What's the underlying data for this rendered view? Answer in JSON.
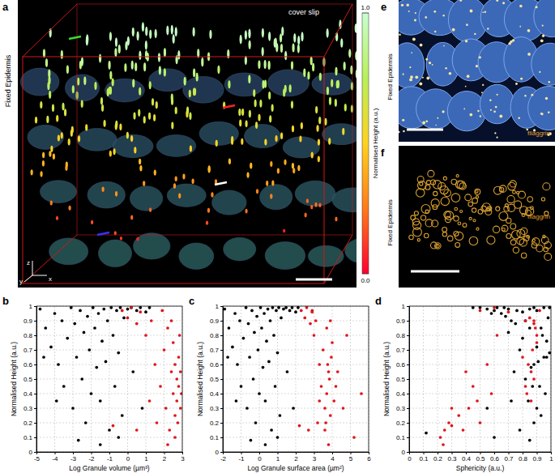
{
  "chart_data": [
    {
      "type": "scatter",
      "title": "b",
      "x_label": "Log Granule volume (µm³)",
      "y_label": "Normalised Height (a.u.)",
      "xlim": [
        -5,
        3
      ],
      "ylim": [
        0,
        1
      ],
      "xticks": [
        -5,
        -4,
        -3,
        -2,
        -1,
        0,
        1,
        2,
        3
      ],
      "yticks": [
        0,
        0.1,
        0.2,
        0.3,
        0.4,
        0.5,
        0.6,
        0.7,
        0.8,
        0.9,
        1
      ],
      "grid": true,
      "marker": "circle",
      "series": [
        {
          "color": "#000000",
          "x": [
            -4.8,
            -4.5,
            -4.2,
            -4,
            -3.8,
            -3.6,
            -3.5,
            -3.3,
            -3.1,
            -3,
            -2.9,
            -2.8,
            -2.6,
            -2.5,
            -2.4,
            -2.3,
            -2.2,
            -2.1,
            -2,
            -1.9,
            -1.8,
            -1.7,
            -1.6,
            -1.5,
            -1.4,
            -1.3,
            -1.2,
            -1.1,
            -1,
            -0.9,
            -0.8,
            -0.7,
            -0.6,
            -0.5,
            -0.4,
            -0.3,
            -0.2,
            0,
            0.2,
            0.3,
            0.5,
            0.7,
            1,
            1.2,
            -4.6,
            -3.9,
            -2.7,
            -1.5,
            -0.5,
            0.8
          ],
          "values": [
            0.98,
            0.85,
            0.72,
            0.95,
            0.6,
            0.9,
            0.45,
            0.78,
            0.99,
            0.3,
            0.88,
            0.65,
            0.97,
            0.5,
            0.82,
            0.2,
            0.93,
            0.7,
            0.4,
            0.99,
            0.85,
            0.58,
            0.95,
            0.35,
            0.76,
            0.98,
            0.62,
            0.9,
            0.15,
            0.99,
            0.8,
            0.45,
            0.97,
            0.68,
            0.99,
            0.25,
            0.92,
            0.98,
            0.99,
            0.55,
            0.97,
            0.99,
            0.96,
            0.99,
            0.65,
            0.35,
            0.08,
            0.05,
            0.1,
            0.3
          ]
        },
        {
          "color": "#e0161b",
          "x": [
            -0.3,
            0,
            0.2,
            0.5,
            0.7,
            1,
            1.3,
            1.5,
            1.8,
            2,
            2.1,
            2.2,
            2.3,
            2.4,
            2.5,
            2.5,
            2.6,
            2.6,
            2.7,
            2.7,
            2.8,
            2.8,
            2.9,
            2.9,
            2.75,
            2.85,
            2.6,
            1.6,
            0.5,
            1.2,
            -0.8,
            2.2,
            2.95,
            2.4,
            1.9
          ],
          "values": [
            0.97,
            0.92,
            0.99,
            0.88,
            0.96,
            0.8,
            0.9,
            0.6,
            0.45,
            0.7,
            0.3,
            0.85,
            0.15,
            0.55,
            0.4,
            0.75,
            0.25,
            0.6,
            0.35,
            0.5,
            0.45,
            0.65,
            0.3,
            0.55,
            0.2,
            0.8,
            0.1,
            0.2,
            0.15,
            0.35,
            0.18,
            0.05,
            0.4,
            0.9,
            0.97
          ]
        }
      ]
    },
    {
      "type": "scatter",
      "title": "c",
      "x_label": "Log Granule surface area (µm²)",
      "y_label": "Normalised Height (a.u.)",
      "xlim": [
        -2,
        6
      ],
      "ylim": [
        0,
        1
      ],
      "xticks": [
        -2,
        -1,
        0,
        1,
        2,
        3,
        4,
        5,
        6
      ],
      "yticks": [
        0,
        0.1,
        0.2,
        0.3,
        0.4,
        0.5,
        0.6,
        0.7,
        0.8,
        0.9,
        1
      ],
      "grid": true,
      "marker": "circle",
      "series": [
        {
          "color": "#000000",
          "x": [
            -1.9,
            -1.67,
            -1.47,
            -1.33,
            -1.2,
            -1.07,
            -1,
            -0.87,
            -0.73,
            -0.67,
            -0.6,
            -0.53,
            -0.4,
            -0.33,
            -0.27,
            -0.2,
            -0.13,
            -0.07,
            0,
            0.07,
            0.13,
            0.2,
            0.27,
            0.33,
            0.4,
            0.47,
            0.53,
            0.6,
            0.67,
            0.73,
            0.8,
            0.87,
            0.93,
            1,
            1.07,
            1.13,
            1.2,
            1.33,
            1.47,
            1.53,
            1.67,
            1.8,
            2,
            2.13,
            -1.73,
            -1.27,
            -0.47,
            0.33,
            1,
            1.87
          ],
          "values": [
            0.98,
            0.85,
            0.72,
            0.95,
            0.6,
            0.9,
            0.45,
            0.78,
            0.99,
            0.3,
            0.88,
            0.65,
            0.97,
            0.5,
            0.82,
            0.2,
            0.93,
            0.7,
            0.4,
            0.99,
            0.85,
            0.58,
            0.95,
            0.35,
            0.76,
            0.98,
            0.62,
            0.9,
            0.15,
            0.99,
            0.8,
            0.45,
            0.97,
            0.68,
            0.99,
            0.25,
            0.92,
            0.98,
            0.99,
            0.55,
            0.97,
            0.99,
            0.96,
            0.99,
            0.65,
            0.35,
            0.08,
            0.05,
            0.1,
            0.3
          ]
        },
        {
          "color": "#e0161b",
          "x": [
            2.3,
            2.5,
            2.6,
            2.8,
            2.9,
            3,
            3.1,
            3.3,
            3.4,
            3.5,
            3.6,
            3.7,
            3.6,
            3.8,
            3.7,
            4,
            3.9,
            3.75,
            4.1,
            3.85,
            4.2,
            3.95,
            4.6,
            4.3,
            3.65,
            4.8,
            5.2,
            3.2,
            2.7,
            3.3,
            2.2,
            3.8,
            5.6,
            3.9,
            2.9
          ],
          "values": [
            0.97,
            0.92,
            0.99,
            0.88,
            0.96,
            0.8,
            0.9,
            0.6,
            0.45,
            0.7,
            0.3,
            0.85,
            0.15,
            0.55,
            0.4,
            0.75,
            0.25,
            0.6,
            0.35,
            0.5,
            0.45,
            0.65,
            0.3,
            0.55,
            0.2,
            0.8,
            0.1,
            0.2,
            0.15,
            0.35,
            0.18,
            0.05,
            0.4,
            0.9,
            0.97
          ]
        }
      ]
    },
    {
      "type": "scatter",
      "title": "d",
      "x_label": "Sphericity (a.u.)",
      "y_label": "Normalised Height (a.u.)",
      "xlim": [
        0,
        1
      ],
      "ylim": [
        0,
        1
      ],
      "xticks": [
        0,
        0.1,
        0.2,
        0.3,
        0.4,
        0.5,
        0.6,
        0.7,
        0.8,
        0.9,
        1
      ],
      "yticks": [
        0,
        0.1,
        0.2,
        0.3,
        0.4,
        0.5,
        0.6,
        0.7,
        0.8,
        0.9,
        1
      ],
      "grid": true,
      "marker": "circle",
      "series": [
        {
          "color": "#000000",
          "x": [
            0.55,
            0.85,
            0.9,
            0.65,
            0.88,
            0.72,
            0.92,
            0.8,
            0.5,
            0.9,
            0.75,
            0.95,
            0.6,
            0.82,
            0.7,
            0.88,
            0.68,
            0.78,
            0.96,
            0.45,
            0.93,
            0.86,
            0.58,
            0.84,
            0.97,
            0.7,
            0.91,
            0.82,
            0.78,
            0.62,
            0.94,
            0.87,
            0.76,
            0.99,
            0.88,
            0.93,
            0.98,
            0.85,
            0.95,
            0.74,
            0.9,
            0.99,
            0.8,
            0.67,
            0.97,
            0.72,
            0.85,
            0.12,
            0.6,
            0.55
          ],
          "values": [
            0.98,
            0.85,
            0.72,
            0.95,
            0.6,
            0.9,
            0.45,
            0.78,
            0.99,
            0.3,
            0.88,
            0.65,
            0.97,
            0.5,
            0.82,
            0.2,
            0.93,
            0.7,
            0.4,
            0.99,
            0.85,
            0.58,
            0.95,
            0.35,
            0.76,
            0.98,
            0.62,
            0.9,
            0.15,
            0.99,
            0.8,
            0.45,
            0.97,
            0.68,
            0.99,
            0.25,
            0.92,
            0.98,
            0.99,
            0.55,
            0.97,
            0.99,
            0.96,
            0.99,
            0.65,
            0.35,
            0.08,
            0.13,
            0.1,
            0.3
          ]
        },
        {
          "color": "#e0161b",
          "x": [
            0.5,
            0.85,
            0.6,
            0.88,
            0.7,
            0.9,
            0.82,
            0.84,
            0.45,
            0.87,
            0.3,
            0.89,
            0.25,
            0.4,
            0.83,
            0.9,
            0.35,
            0.55,
            0.86,
            0.88,
            0.82,
            0.8,
            0.42,
            0.86,
            0.28,
            0.62,
            0.22,
            0.5,
            0.38,
            0.48,
            0.3,
            0.24,
            0.58,
            0.88,
            0.92
          ],
          "values": [
            0.97,
            0.92,
            0.99,
            0.88,
            0.96,
            0.8,
            0.9,
            0.6,
            0.45,
            0.7,
            0.3,
            0.85,
            0.15,
            0.55,
            0.4,
            0.75,
            0.25,
            0.6,
            0.35,
            0.5,
            0.45,
            0.65,
            0.3,
            0.55,
            0.2,
            0.8,
            0.1,
            0.2,
            0.15,
            0.35,
            0.18,
            0.05,
            0.4,
            0.9,
            0.97
          ]
        }
      ]
    }
  ],
  "figure": {
    "panels": [
      {
        "label": "a",
        "side_label": "Fixed Epidermis",
        "caption": "cover slip",
        "axis_letters": [
          "z",
          "y",
          "x"
        ],
        "colorbar": {
          "label": "Normalised Height (a.u.)",
          "range": [
            0,
            1
          ],
          "ticks": [
            {
              "value": 0,
              "label": "0.0"
            },
            {
              "value": 1,
              "label": "1.0"
            }
          ],
          "colors": [
            "#ff0030",
            "#ff7a1a",
            "#ffd21f",
            "#b8f05a",
            "#c8ffd0"
          ]
        }
      },
      {
        "label": "e",
        "side_label": "Fixed Epidermis",
        "stain": "filaggrin"
      },
      {
        "label": "f",
        "side_label": "Fixed Epidermis",
        "stain": "filaggrin"
      }
    ]
  }
}
